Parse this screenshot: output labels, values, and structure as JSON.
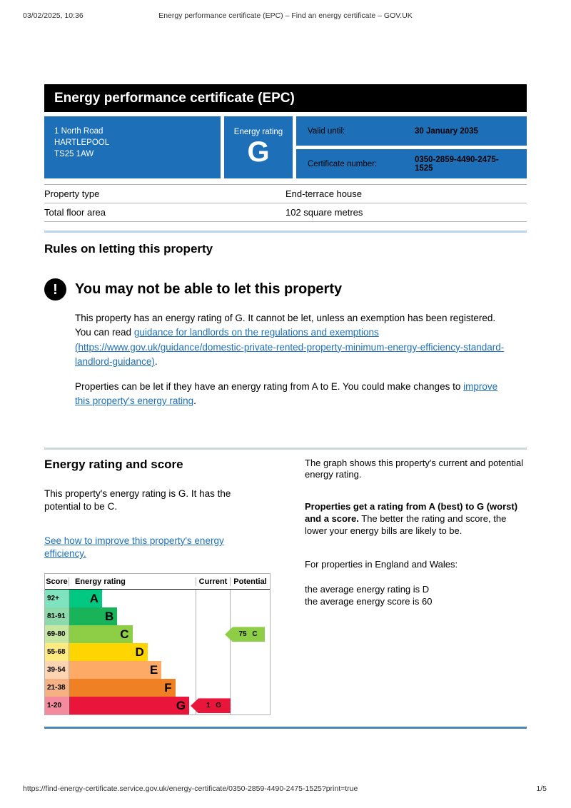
{
  "print_header": {
    "datetime": "03/02/2025, 10:36",
    "title": "Energy performance certificate (EPC) – Find an energy certificate – GOV.UK"
  },
  "banner": {
    "title": "Energy performance certificate (EPC)"
  },
  "certificate": {
    "address_lines": [
      "1 North Road",
      "HARTLEPOOL",
      "TS25 1AW"
    ],
    "energy_rating_label": "Energy rating",
    "energy_rating": "G",
    "valid_until_label": "Valid until:",
    "valid_until": "30 January 2035",
    "certificate_number_label": "Certificate number:",
    "certificate_number": "0350-2859-4490-2475-1525"
  },
  "property_details": {
    "rows": [
      {
        "label": "Property type",
        "value": "End-terrace house"
      },
      {
        "label": "Total floor area",
        "value": "102 square metres"
      }
    ]
  },
  "rules_section": {
    "heading": "Rules on letting this property",
    "warning_icon": "!",
    "warning_heading": "You may not be able to let this property",
    "para1_before": "This property has an energy rating of G. It cannot be let, unless an exemption has been registered. You can read ",
    "para1_link": "guidance for landlords on the regulations and exemptions (https://www.gov.uk/guidance/domestic-private-rented-property-minimum-energy-efficiency-standard-landlord-guidance)",
    "para1_after": ".",
    "para2_before": "Properties can be let if they have an energy rating from A to E. You could make changes to ",
    "para2_link": "improve this property's energy rating",
    "para2_after": "."
  },
  "rating_section": {
    "heading": "Energy rating and score",
    "intro": "This property's energy rating is G. It has the potential to be C.",
    "improve_link": "See how to improve this property's energy efficiency.",
    "graph_intro": "The graph shows this property's current and potential energy rating.",
    "explain_bold": "Properties get a rating from A (best) to G (worst) and a score.",
    "explain_rest": " The better the rating and score, the lower your energy bills are likely to be.",
    "england_wales": "For properties in England and Wales:",
    "avg_rating": "the average energy rating is D",
    "avg_score": "the average energy score is 60"
  },
  "chart_data": {
    "type": "bar",
    "title": "Energy rating and score graph",
    "columns": [
      "Score",
      "Energy rating",
      "Current",
      "Potential"
    ],
    "bands": [
      {
        "range": "92+",
        "letter": "A",
        "color": "#00c781",
        "tint": "#80e3c0",
        "width_pct": 26
      },
      {
        "range": "81-91",
        "letter": "B",
        "color": "#19b459",
        "tint": "#8cd9ac",
        "width_pct": 38
      },
      {
        "range": "69-80",
        "letter": "C",
        "color": "#8dce46",
        "tint": "#c6e6a2",
        "width_pct": 50
      },
      {
        "range": "55-68",
        "letter": "D",
        "color": "#ffd500",
        "tint": "#ffea80",
        "width_pct": 62
      },
      {
        "range": "39-54",
        "letter": "E",
        "color": "#fcaa65",
        "tint": "#fdd4b2",
        "width_pct": 73
      },
      {
        "range": "21-38",
        "letter": "F",
        "color": "#ef8023",
        "tint": "#f5b183",
        "width_pct": 84
      },
      {
        "range": "1-20",
        "letter": "G",
        "color": "#e9153b",
        "tint": "#f48a9d",
        "width_pct": 95
      }
    ],
    "current": {
      "score": 1,
      "band": "G",
      "label": "1 G",
      "color": "#e9153b",
      "band_index": 6
    },
    "potential": {
      "score": 75,
      "band": "C",
      "label": "75 C",
      "color": "#8dce46",
      "band_index": 2
    }
  },
  "footer": {
    "url": "https://find-energy-certificate.service.gov.uk/energy-certificate/0350-2859-4490-2475-1525?print=true",
    "page": "1/5"
  }
}
